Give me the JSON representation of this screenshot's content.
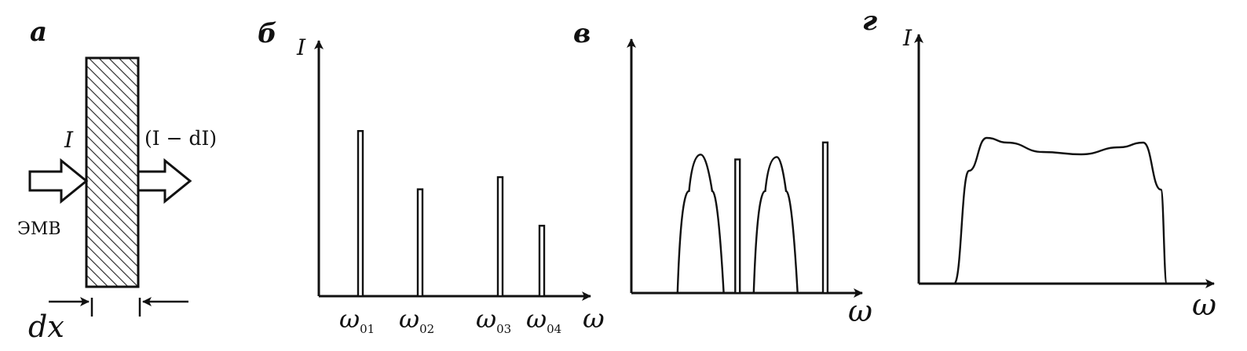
{
  "panels": {
    "a": {
      "label": "а",
      "incident_label": "I",
      "transmitted_label": "(I − dI)",
      "wave_label": "ЭМВ",
      "thickness_label": "dx"
    },
    "b": {
      "label": "б",
      "y_label": "I",
      "x_label": "ω",
      "tick_labels": [
        {
          "main": "ω",
          "sub": "01"
        },
        {
          "main": "ω",
          "sub": "02"
        },
        {
          "main": "ω",
          "sub": "03"
        },
        {
          "main": "ω",
          "sub": "04"
        }
      ]
    },
    "c": {
      "label": "в",
      "x_label": "ω"
    },
    "d": {
      "label": "г",
      "y_label": "I",
      "x_label": "ω"
    }
  },
  "chart_data": [
    {
      "type": "bar",
      "panel": "б",
      "categories": [
        "ω01",
        "ω02",
        "ω03",
        "ω04"
      ],
      "values": [
        0.68,
        0.44,
        0.49,
        0.29
      ],
      "xlabel": "ω",
      "ylabel": "I",
      "grid": false
    },
    {
      "type": "line",
      "panel": "в",
      "xlabel": "ω",
      "ylabel": "",
      "series": [
        {
          "x": [
            0.2,
            0.25,
            0.3,
            0.35,
            0.4
          ],
          "values": [
            0,
            0.42,
            0.57,
            0.42,
            0
          ]
        },
        {
          "x": [
            0.45,
            0.45,
            0.47,
            0.47
          ],
          "values": [
            0,
            0.55,
            0.55,
            0
          ]
        },
        {
          "x": [
            0.53,
            0.58,
            0.63,
            0.67,
            0.72
          ],
          "values": [
            0,
            0.42,
            0.56,
            0.42,
            0
          ]
        },
        {
          "x": [
            0.83,
            0.83,
            0.85,
            0.85
          ],
          "values": [
            0,
            0.62,
            0.62,
            0
          ]
        }
      ],
      "grid": false
    },
    {
      "type": "area",
      "panel": "г",
      "xlabel": "ω",
      "ylabel": "I",
      "x": [
        0.12,
        0.17,
        0.23,
        0.3,
        0.42,
        0.55,
        0.68,
        0.76,
        0.82,
        0.84
      ],
      "values": [
        0,
        0.48,
        0.62,
        0.6,
        0.56,
        0.55,
        0.58,
        0.6,
        0.4,
        0
      ],
      "grid": false
    }
  ]
}
